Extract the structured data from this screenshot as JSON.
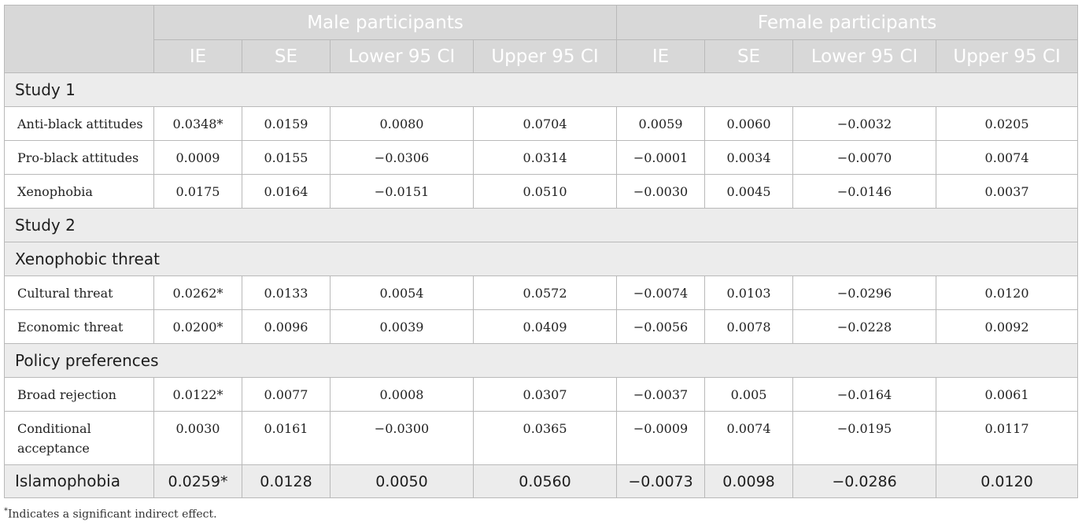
{
  "header": {
    "male_group": "Male participants",
    "female_group": "Female participants",
    "columns": [
      "IE",
      "SE",
      "Lower 95 CI",
      "Upper 95 CI",
      "IE",
      "SE",
      "Lower 95 CI",
      "Upper 95 CI"
    ]
  },
  "sections": {
    "study1": "Study 1",
    "study2": "Study 2",
    "xenophobic_threat": "Xenophobic threat",
    "policy_preferences": "Policy preferences"
  },
  "rows": {
    "anti_black": {
      "label": "Anti-black attitudes",
      "values": [
        "0.0348*",
        "0.0159",
        "0.0080",
        "0.0704",
        "0.0059",
        "0.0060",
        "−0.0032",
        "0.0205"
      ]
    },
    "pro_black": {
      "label": "Pro-black attitudes",
      "values": [
        "0.0009",
        "0.0155",
        "−0.0306",
        "0.0314",
        "−0.0001",
        "0.0034",
        "−0.0070",
        "0.0074"
      ]
    },
    "xenophobia": {
      "label": "Xenophobia",
      "values": [
        "0.0175",
        "0.0164",
        "−0.0151",
        "0.0510",
        "−0.0030",
        "0.0045",
        "−0.0146",
        "0.0037"
      ]
    },
    "cultural_threat": {
      "label": "Cultural threat",
      "values": [
        "0.0262*",
        "0.0133",
        "0.0054",
        "0.0572",
        "−0.0074",
        "0.0103",
        "−0.0296",
        "0.0120"
      ]
    },
    "economic_threat": {
      "label": "Economic threat",
      "values": [
        "0.0200*",
        "0.0096",
        "0.0039",
        "0.0409",
        "−0.0056",
        "0.0078",
        "−0.0228",
        "0.0092"
      ]
    },
    "broad_rejection": {
      "label": "Broad rejection",
      "values": [
        "0.0122*",
        "0.0077",
        "0.0008",
        "0.0307",
        "−0.0037",
        "0.005",
        "−0.0164",
        "0.0061"
      ]
    },
    "conditional_acceptance": {
      "label": "Conditional acceptance",
      "values": [
        "0.0030",
        "0.0161",
        "−0.0300",
        "0.0365",
        "−0.0009",
        "0.0074",
        "−0.0195",
        "0.0117"
      ]
    },
    "islamophobia": {
      "label": "Islamophobia",
      "values": [
        "0.0259*",
        "0.0128",
        "0.0050",
        "0.0560",
        "−0.0073",
        "0.0098",
        "−0.0286",
        "0.0120"
      ]
    }
  },
  "footnote": {
    "marker": "*",
    "text": "Indicates a significant indirect effect."
  }
}
